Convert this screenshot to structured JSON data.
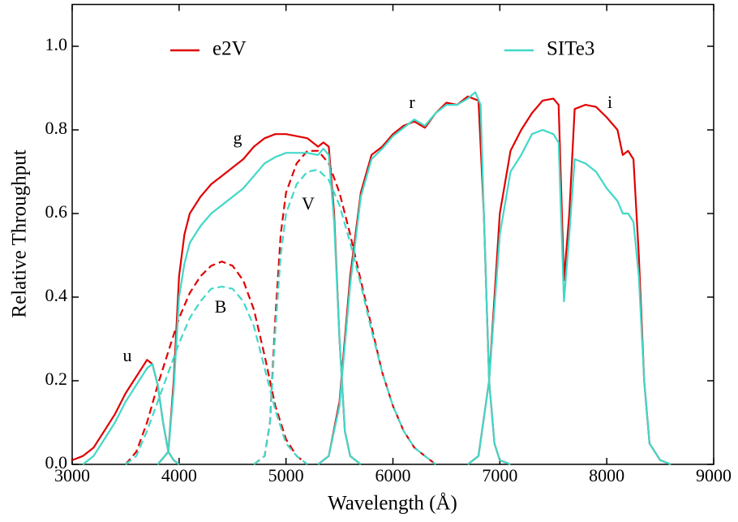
{
  "chart_data": {
    "type": "line",
    "xlabel": "Wavelength (Å)",
    "ylabel": "Relative Throughput",
    "xlim": [
      3000,
      9000
    ],
    "xticks": [
      3000,
      4000,
      5000,
      6000,
      7000,
      8000,
      9000
    ],
    "ylim": [
      0,
      1.1
    ],
    "yticks": [
      {
        "value": 0,
        "label": "0.0"
      },
      0.2,
      0.4,
      0.6,
      0.8,
      {
        "value": 1,
        "label": "1.0"
      }
    ],
    "annotations": [
      "u",
      "g",
      "r",
      "i",
      "B",
      "V"
    ],
    "series": [
      {
        "name": "e2V",
        "color": "#e00000",
        "curves": [
          {
            "dashed": false,
            "x": [
              3000,
              3100,
              3200,
              3300,
              3400,
              3500,
              3600,
              3700,
              3750,
              3800,
              3850,
              3900,
              3950,
              4000
            ],
            "values": [
              0.01,
              0.02,
              0.04,
              0.08,
              0.12,
              0.17,
              0.21,
              0.25,
              0.24,
              0.19,
              0.1,
              0.03,
              0.01,
              0
            ]
          },
          {
            "dashed": false,
            "x": [
              3800,
              3900,
              3950,
              4000,
              4050,
              4100,
              4200,
              4300,
              4400,
              4500,
              4600,
              4700,
              4800,
              4900,
              5000,
              5100,
              5200,
              5300,
              5350,
              5400,
              5450,
              5500,
              5550,
              5600,
              5700
            ],
            "values": [
              0,
              0.03,
              0.2,
              0.45,
              0.55,
              0.6,
              0.64,
              0.67,
              0.69,
              0.71,
              0.73,
              0.76,
              0.78,
              0.79,
              0.79,
              0.785,
              0.78,
              0.76,
              0.77,
              0.76,
              0.6,
              0.3,
              0.08,
              0.02,
              0
            ]
          },
          {
            "dashed": false,
            "x": [
              5300,
              5400,
              5500,
              5600,
              5700,
              5800,
              5900,
              6000,
              6100,
              6200,
              6300,
              6400,
              6500,
              6600,
              6700,
              6800,
              6850,
              6900,
              6950,
              7000,
              7100
            ],
            "values": [
              0,
              0.02,
              0.15,
              0.45,
              0.65,
              0.74,
              0.76,
              0.79,
              0.81,
              0.82,
              0.805,
              0.84,
              0.865,
              0.86,
              0.88,
              0.87,
              0.6,
              0.2,
              0.05,
              0.01,
              0
            ]
          },
          {
            "dashed": false,
            "x": [
              6700,
              6800,
              6900,
              7000,
              7100,
              7200,
              7300,
              7400,
              7500,
              7550,
              7600,
              7650,
              7700,
              7800,
              7900,
              8000,
              8100,
              8150,
              8200,
              8250,
              8300,
              8350,
              8400,
              8500,
              8600
            ],
            "values": [
              0,
              0.02,
              0.2,
              0.6,
              0.75,
              0.8,
              0.84,
              0.87,
              0.875,
              0.86,
              0.44,
              0.6,
              0.85,
              0.86,
              0.855,
              0.83,
              0.8,
              0.74,
              0.75,
              0.73,
              0.5,
              0.2,
              0.05,
              0.01,
              0
            ]
          },
          {
            "dashed": true,
            "x": [
              3500,
              3600,
              3700,
              3800,
              3900,
              4000,
              4100,
              4200,
              4300,
              4400,
              4500,
              4600,
              4700,
              4800,
              4900,
              5000,
              5100,
              5200
            ],
            "values": [
              0,
              0.03,
              0.1,
              0.19,
              0.27,
              0.35,
              0.41,
              0.45,
              0.475,
              0.485,
              0.475,
              0.44,
              0.37,
              0.26,
              0.14,
              0.06,
              0.02,
              0
            ]
          },
          {
            "dashed": true,
            "x": [
              4700,
              4800,
              4850,
              4900,
              4950,
              5000,
              5100,
              5200,
              5300,
              5400,
              5500,
              5600,
              5700,
              5800,
              5900,
              6000,
              6100,
              6200,
              6300,
              6400
            ],
            "values": [
              0,
              0.02,
              0.1,
              0.35,
              0.55,
              0.65,
              0.72,
              0.75,
              0.75,
              0.72,
              0.65,
              0.55,
              0.44,
              0.33,
              0.22,
              0.14,
              0.08,
              0.04,
              0.02,
              0
            ]
          }
        ]
      },
      {
        "name": "SITe3",
        "color": "#40d8c8",
        "curves": [
          {
            "dashed": false,
            "x": [
              3100,
              3200,
              3300,
              3400,
              3500,
              3600,
              3700,
              3750,
              3800,
              3850,
              3900,
              3950,
              4000
            ],
            "values": [
              0,
              0.02,
              0.06,
              0.1,
              0.15,
              0.19,
              0.23,
              0.24,
              0.19,
              0.1,
              0.03,
              0.01,
              0
            ]
          },
          {
            "dashed": false,
            "x": [
              3800,
              3900,
              3950,
              4000,
              4050,
              4100,
              4200,
              4300,
              4400,
              4500,
              4600,
              4700,
              4800,
              4900,
              5000,
              5100,
              5200,
              5300,
              5350,
              5400,
              5450,
              5500,
              5550,
              5600,
              5700
            ],
            "values": [
              0,
              0.03,
              0.18,
              0.4,
              0.48,
              0.53,
              0.57,
              0.6,
              0.62,
              0.64,
              0.66,
              0.69,
              0.72,
              0.735,
              0.745,
              0.745,
              0.745,
              0.74,
              0.755,
              0.74,
              0.58,
              0.3,
              0.08,
              0.02,
              0
            ]
          },
          {
            "dashed": false,
            "x": [
              5300,
              5400,
              5500,
              5600,
              5700,
              5800,
              5900,
              6000,
              6100,
              6200,
              6300,
              6400,
              6500,
              6600,
              6700,
              6770,
              6820,
              6850,
              6900,
              6950,
              7000,
              7100
            ],
            "values": [
              0,
              0.02,
              0.14,
              0.43,
              0.64,
              0.73,
              0.755,
              0.785,
              0.805,
              0.825,
              0.81,
              0.84,
              0.86,
              0.86,
              0.875,
              0.89,
              0.86,
              0.6,
              0.2,
              0.05,
              0.01,
              0
            ]
          },
          {
            "dashed": false,
            "x": [
              6700,
              6800,
              6900,
              7000,
              7100,
              7200,
              7300,
              7400,
              7500,
              7550,
              7600,
              7650,
              7700,
              7800,
              7900,
              8000,
              8100,
              8150,
              8200,
              8250,
              8300,
              8350,
              8400,
              8500,
              8600
            ],
            "values": [
              0,
              0.02,
              0.2,
              0.55,
              0.7,
              0.74,
              0.79,
              0.8,
              0.79,
              0.77,
              0.39,
              0.55,
              0.73,
              0.72,
              0.7,
              0.66,
              0.63,
              0.6,
              0.6,
              0.58,
              0.45,
              0.2,
              0.05,
              0.01,
              0
            ]
          },
          {
            "dashed": true,
            "x": [
              3500,
              3600,
              3700,
              3800,
              3900,
              4000,
              4100,
              4200,
              4300,
              4400,
              4500,
              4600,
              4700,
              4800,
              4900,
              5000,
              5100,
              5200
            ],
            "values": [
              0,
              0.02,
              0.08,
              0.15,
              0.22,
              0.29,
              0.35,
              0.39,
              0.42,
              0.425,
              0.42,
              0.39,
              0.33,
              0.23,
              0.13,
              0.05,
              0.02,
              0
            ]
          },
          {
            "dashed": true,
            "x": [
              4700,
              4800,
              4850,
              4900,
              4950,
              5000,
              5100,
              5200,
              5300,
              5400,
              5500,
              5600,
              5700,
              5800,
              5900,
              6000,
              6100,
              6200,
              6300,
              6400
            ],
            "values": [
              0,
              0.02,
              0.1,
              0.32,
              0.5,
              0.6,
              0.67,
              0.7,
              0.705,
              0.68,
              0.62,
              0.53,
              0.43,
              0.32,
              0.22,
              0.14,
              0.08,
              0.04,
              0.02,
              0
            ]
          }
        ]
      }
    ]
  }
}
